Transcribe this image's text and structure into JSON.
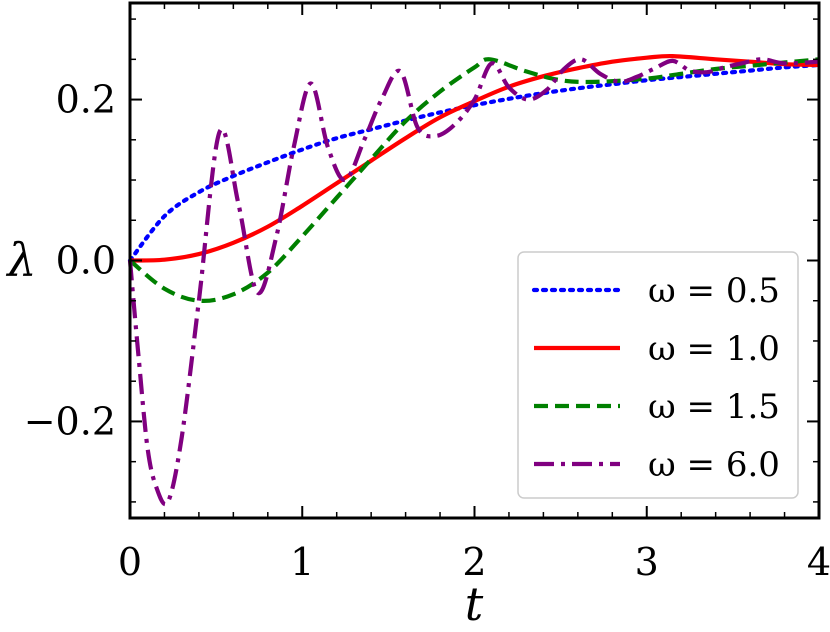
{
  "chart_data": {
    "type": "line",
    "xlabel": "t",
    "ylabel": "λ",
    "xlim": [
      0,
      4
    ],
    "ylim": [
      -0.32,
      0.32
    ],
    "x_ticks": [
      0,
      1,
      2,
      3,
      4
    ],
    "x_tick_labels": [
      "0",
      "1",
      "2",
      "3",
      "4"
    ],
    "y_ticks": [
      -0.2,
      0.0,
      0.2
    ],
    "y_tick_labels": [
      "−0.2",
      "0.0",
      "0.2"
    ],
    "grid": false,
    "legend_position": "lower-right",
    "series": [
      {
        "name": "ω = 0.5",
        "style": "dotted",
        "color": "#0000ff",
        "x": [
          0,
          0.2,
          0.4,
          0.6,
          0.8,
          1.0,
          1.2,
          1.4,
          1.6,
          1.8,
          2.0,
          2.2,
          2.4,
          2.6,
          2.8,
          3.0,
          3.2,
          3.4,
          3.6,
          3.8,
          4.0
        ],
        "y": [
          0.0,
          0.055,
          0.085,
          0.105,
          0.122,
          0.138,
          0.152,
          0.163,
          0.174,
          0.184,
          0.193,
          0.201,
          0.208,
          0.214,
          0.219,
          0.224,
          0.228,
          0.232,
          0.236,
          0.24,
          0.243
        ]
      },
      {
        "name": "ω = 1.0",
        "style": "solid",
        "color": "#ff0000",
        "x": [
          0,
          0.2,
          0.4,
          0.6,
          0.8,
          1.0,
          1.2,
          1.4,
          1.6,
          1.8,
          2.0,
          2.2,
          2.4,
          2.6,
          2.8,
          3.0,
          3.15,
          3.4,
          3.6,
          3.8,
          4.0
        ],
        "y": [
          0.0,
          0.001,
          0.008,
          0.022,
          0.042,
          0.068,
          0.096,
          0.124,
          0.152,
          0.178,
          0.198,
          0.216,
          0.229,
          0.239,
          0.247,
          0.252,
          0.254,
          0.25,
          0.247,
          0.244,
          0.243
        ]
      },
      {
        "name": "ω = 1.5",
        "style": "dashed",
        "color": "#008000",
        "x": [
          0,
          0.2,
          0.4,
          0.6,
          0.8,
          1.0,
          1.2,
          1.4,
          1.6,
          1.8,
          2.0,
          2.09,
          2.3,
          2.5,
          2.7,
          3.0,
          3.2,
          3.4,
          3.6,
          3.8,
          4.0
        ],
        "y": [
          0.0,
          -0.035,
          -0.05,
          -0.042,
          -0.015,
          0.03,
          0.078,
          0.126,
          0.173,
          0.21,
          0.24,
          0.25,
          0.235,
          0.224,
          0.222,
          0.226,
          0.232,
          0.238,
          0.242,
          0.246,
          0.25
        ]
      },
      {
        "name": "ω = 6.0",
        "style": "dashdot",
        "color": "#800080",
        "x": [
          0,
          0.05,
          0.1,
          0.15,
          0.22,
          0.3,
          0.4,
          0.52,
          0.63,
          0.74,
          0.85,
          0.95,
          1.05,
          1.15,
          1.25,
          1.36,
          1.46,
          1.57,
          1.67,
          1.78,
          1.89,
          2.0,
          2.1,
          2.2,
          2.31,
          2.42,
          2.52,
          2.62,
          2.73,
          2.84,
          2.94,
          3.04,
          3.15,
          3.25,
          3.35,
          3.45,
          3.55,
          3.67,
          3.8,
          4.0
        ],
        "y": [
          0.0,
          -0.12,
          -0.23,
          -0.28,
          -0.3,
          -0.22,
          -0.05,
          0.16,
          0.07,
          -0.04,
          0.03,
          0.14,
          0.22,
          0.14,
          0.1,
          0.15,
          0.2,
          0.235,
          0.165,
          0.155,
          0.17,
          0.2,
          0.245,
          0.215,
          0.2,
          0.212,
          0.238,
          0.25,
          0.232,
          0.222,
          0.228,
          0.238,
          0.248,
          0.236,
          0.234,
          0.24,
          0.245,
          0.25,
          0.245,
          0.247
        ]
      }
    ]
  }
}
